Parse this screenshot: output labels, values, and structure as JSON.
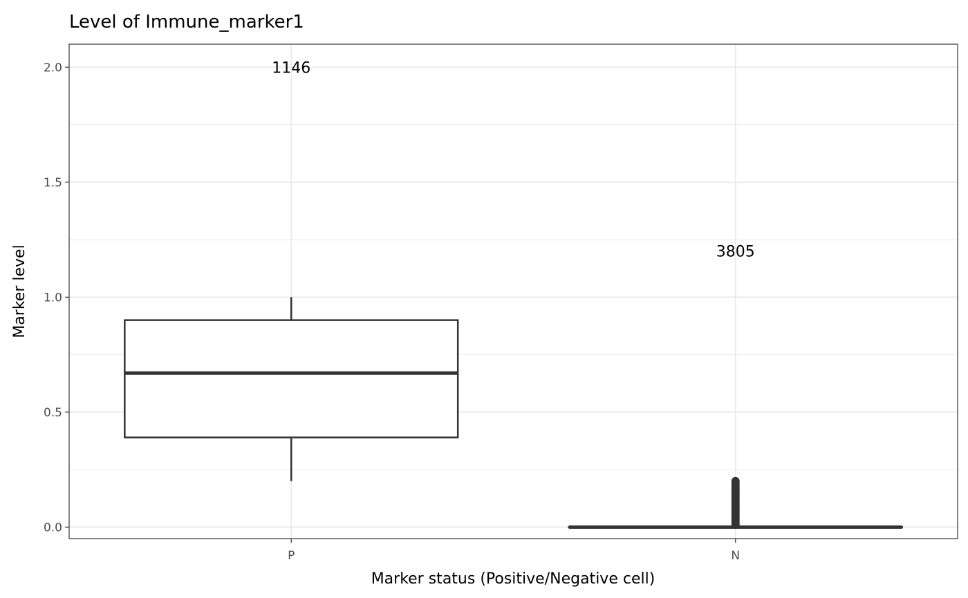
{
  "chart_data": {
    "type": "box",
    "title": "Level of Immune_marker1",
    "xlabel": "Marker status (Positive/Negative cell)",
    "ylabel": "Marker level",
    "categories": [
      "P",
      "N"
    ],
    "ylim": [
      -0.05,
      2.1
    ],
    "yticks": [
      0.0,
      0.5,
      1.0,
      1.5,
      2.0
    ],
    "ytick_labels": [
      "0.0",
      "0.5",
      "1.0",
      "1.5",
      "2.0"
    ],
    "grid": true,
    "boxes": [
      {
        "category": "P",
        "whisker_low": 0.2,
        "q1": 0.39,
        "median": 0.67,
        "q3": 0.9,
        "whisker_high": 1.0,
        "outliers": []
      },
      {
        "category": "N",
        "whisker_low": 0.0,
        "q1": 0.0,
        "median": 0.0,
        "q3": 0.0,
        "whisker_high": 0.0,
        "outliers": [
          0.01,
          0.02,
          0.03,
          0.04,
          0.05,
          0.06,
          0.07,
          0.08,
          0.09,
          0.1,
          0.11,
          0.12,
          0.13,
          0.14,
          0.15,
          0.16,
          0.17,
          0.18,
          0.19,
          0.2
        ]
      }
    ],
    "count_labels": [
      {
        "category": "P",
        "text": "1146",
        "y": 2.0
      },
      {
        "category": "N",
        "text": "3805",
        "y": 1.2
      }
    ],
    "colors": {
      "box_line": "#333333",
      "grid": "#ebebeb",
      "panel_border": "#333333"
    }
  }
}
